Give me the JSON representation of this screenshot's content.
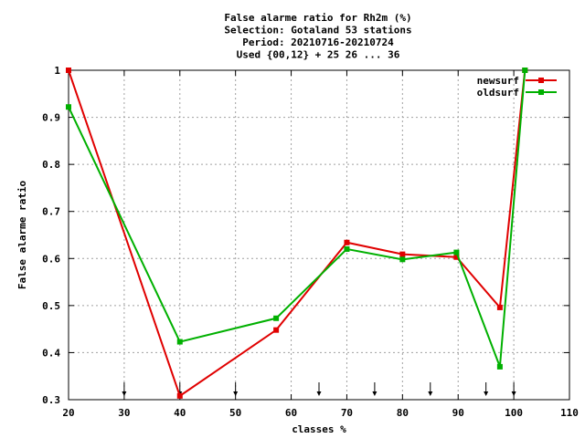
{
  "chart_data": {
    "type": "line",
    "title_lines": [
      "False alarme ratio  for Rh2m (%)",
      "Selection: Gotaland     53 stations",
      "Period: 20210716-20210724",
      "Used {00,12} + 25 26 ... 36"
    ],
    "xlabel": "classes %",
    "ylabel": "False alarme ratio",
    "xlim": [
      20,
      110
    ],
    "ylim": [
      0.3,
      1.0
    ],
    "x_ticks": [
      20,
      30,
      40,
      50,
      60,
      70,
      80,
      90,
      100,
      110
    ],
    "y_ticks": [
      0.3,
      0.4,
      0.5,
      0.6,
      0.7,
      0.8,
      0.9,
      1.0
    ],
    "y_tick_labels": [
      "0.3",
      "0.4",
      "0.5",
      "0.6",
      "0.7",
      "0.8",
      "0.9",
      "1"
    ],
    "grid": true,
    "legend_position": "top-right",
    "class_markers_x": [
      30,
      40,
      50,
      65,
      75,
      85,
      95,
      100
    ],
    "series": [
      {
        "name": "newsurf",
        "color": "#e00000",
        "x": [
          20,
          40,
          57.3,
          70,
          80,
          89.7,
          97.5,
          102
        ],
        "y": [
          1.0,
          0.308,
          0.448,
          0.634,
          0.609,
          0.603,
          0.496,
          1.0
        ]
      },
      {
        "name": "oldsurf",
        "color": "#00b000",
        "x": [
          20,
          40,
          57.3,
          70,
          80,
          89.7,
          97.5,
          102
        ],
        "y": [
          0.922,
          0.423,
          0.473,
          0.62,
          0.598,
          0.613,
          0.37,
          1.0
        ]
      }
    ]
  }
}
